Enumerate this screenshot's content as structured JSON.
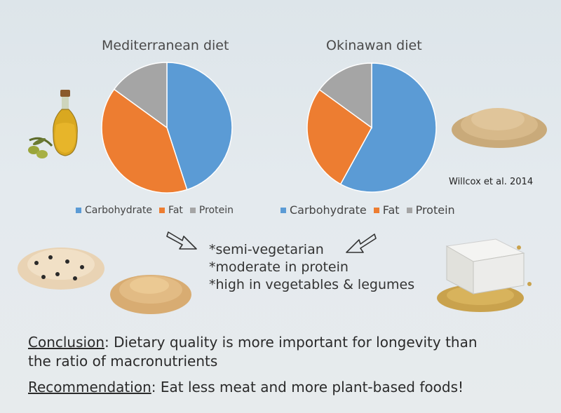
{
  "chart_data": [
    {
      "type": "pie",
      "title": "Mediterranean diet",
      "categories": [
        "Carbohydrate",
        "Fat",
        "Protein"
      ],
      "values": [
        45,
        40,
        15
      ],
      "colors": [
        "#5b9bd5",
        "#ed7d31",
        "#a5a5a5"
      ],
      "legend": "bottom"
    },
    {
      "type": "pie",
      "title": "Okinawan diet",
      "categories": [
        "Carbohydrate",
        "Fat",
        "Protein"
      ],
      "values": [
        58,
        27,
        15
      ],
      "colors": [
        "#5b9bd5",
        "#ed7d31",
        "#a5a5a5"
      ],
      "legend": "bottom"
    }
  ],
  "citation": "Willcox et al. 2014",
  "bullets": [
    "*semi-vegetarian",
    "*moderate in protein",
    "*high in vegetables & legumes"
  ],
  "conclusion": {
    "label": "Conclusion",
    "text": ": Dietary quality is more important for longevity than",
    "text2": "the ratio of macronutrients"
  },
  "recommendation": {
    "label": "Recommendation",
    "text": ": Eat less meat and more plant-based foods!"
  },
  "illustrations": [
    "olive-oil-bottle",
    "rice-pile",
    "black-eyed-peas",
    "chickpeas",
    "tofu-soybeans",
    "arrow-down-right",
    "arrow-down-left"
  ]
}
